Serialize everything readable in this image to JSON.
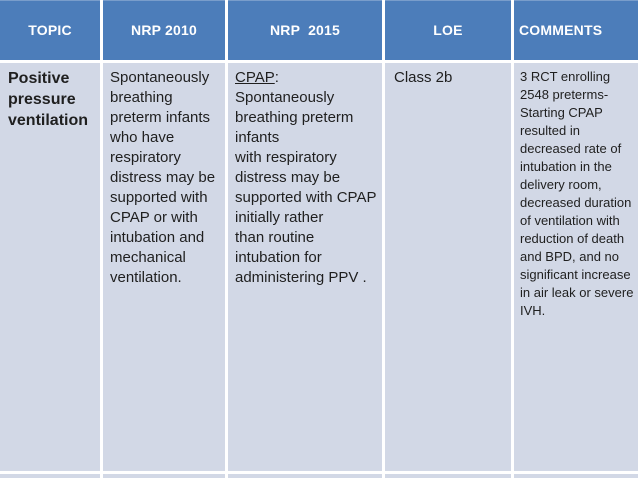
{
  "table": {
    "columns": [
      {
        "key": "topic",
        "label": "TOPIC"
      },
      {
        "key": "nrp2010",
        "label": "NRP 2010"
      },
      {
        "key": "nrp2015",
        "label": "NRP  2015"
      },
      {
        "key": "loe",
        "label": "LOE"
      },
      {
        "key": "comments",
        "label": "COMMENTS"
      }
    ],
    "rows": [
      {
        "topic": "Positive\npressure\nventilation",
        "nrp2010": "Spontaneously\nbreathing\npreterm infants\nwho have\nrespiratory\ndistress may be\nsupported with\nCPAP or with\nintubation and\nmechanical\nventilation.",
        "nrp2015_underlined": "CPAP",
        "nrp2015_rest": ": Spontaneously\nbreathing preterm\ninfants\nwith respiratory\ndistress may be\nsupported with CPAP\ninitially rather\nthan routine\nintubation for\nadministering PPV .",
        "loe": "Class 2b",
        "comments": "3 RCT enrolling\n2548 preterms-\nStarting CPAP\nresulted in\ndecreased rate of\nintubation in the\ndelivery room,\ndecreased duration\nof ventilation with\nreduction of death\nand BPD, and no\nsignificant increase\nin air leak or severe\nIVH."
      }
    ]
  },
  "colors": {
    "header_bg": "#4c7dba",
    "header_text": "#ffffff",
    "body_bg": "#d2d8e6",
    "body_text": "#1f1f1f",
    "border": "#ffffff"
  }
}
